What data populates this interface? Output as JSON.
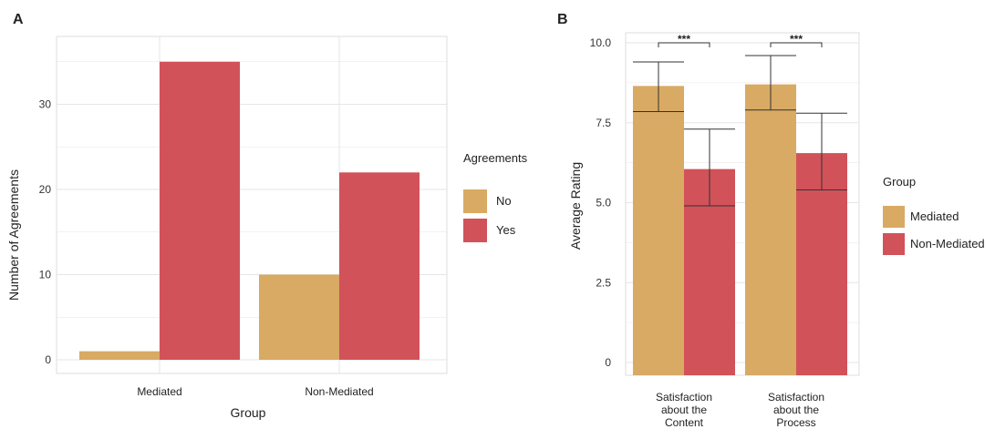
{
  "colors": {
    "no": "#d8aa63",
    "yes": "#d2525a",
    "grid": "#e6e6e6",
    "border": "#dddddd"
  },
  "chart_data": [
    {
      "panel": "A",
      "type": "bar",
      "xlabel": "Group",
      "ylabel": "Number of Agreements",
      "categories": [
        "Mediated",
        "Non-Mediated"
      ],
      "series": [
        {
          "name": "No",
          "values": [
            1,
            10
          ]
        },
        {
          "name": "Yes",
          "values": [
            35,
            22
          ]
        }
      ],
      "yticks": [
        "0",
        "10",
        "20",
        "30"
      ],
      "ylim": [
        0,
        37
      ],
      "legend": {
        "title": "Agreements",
        "position": "right",
        "items": [
          "No",
          "Yes"
        ]
      },
      "grid": true
    },
    {
      "panel": "B",
      "type": "bar",
      "xlabel": "",
      "ylabel": "Average Rating",
      "categories": [
        "Satisfaction about the Content",
        "Satisfaction about the Process"
      ],
      "category_lines": [
        [
          "Satisfaction",
          "about the",
          "Content"
        ],
        [
          "Satisfaction",
          "about the",
          "Process"
        ]
      ],
      "series": [
        {
          "name": "Mediated",
          "values": [
            8.65,
            8.7
          ],
          "err_low": [
            7.85,
            7.9
          ],
          "err_high": [
            9.4,
            9.6
          ]
        },
        {
          "name": "Non-Mediated",
          "values": [
            6.05,
            6.55
          ],
          "err_low": [
            4.9,
            5.4
          ],
          "err_high": [
            7.3,
            7.8
          ]
        }
      ],
      "yticks": [
        "0",
        "2.5",
        "5.0",
        "7.5",
        "10.0"
      ],
      "ylim": [
        0,
        10
      ],
      "significance": [
        "***",
        "***"
      ],
      "legend": {
        "title": "Group",
        "position": "right",
        "items": [
          "Mediated",
          "Non-Mediated"
        ]
      },
      "grid": true
    }
  ]
}
